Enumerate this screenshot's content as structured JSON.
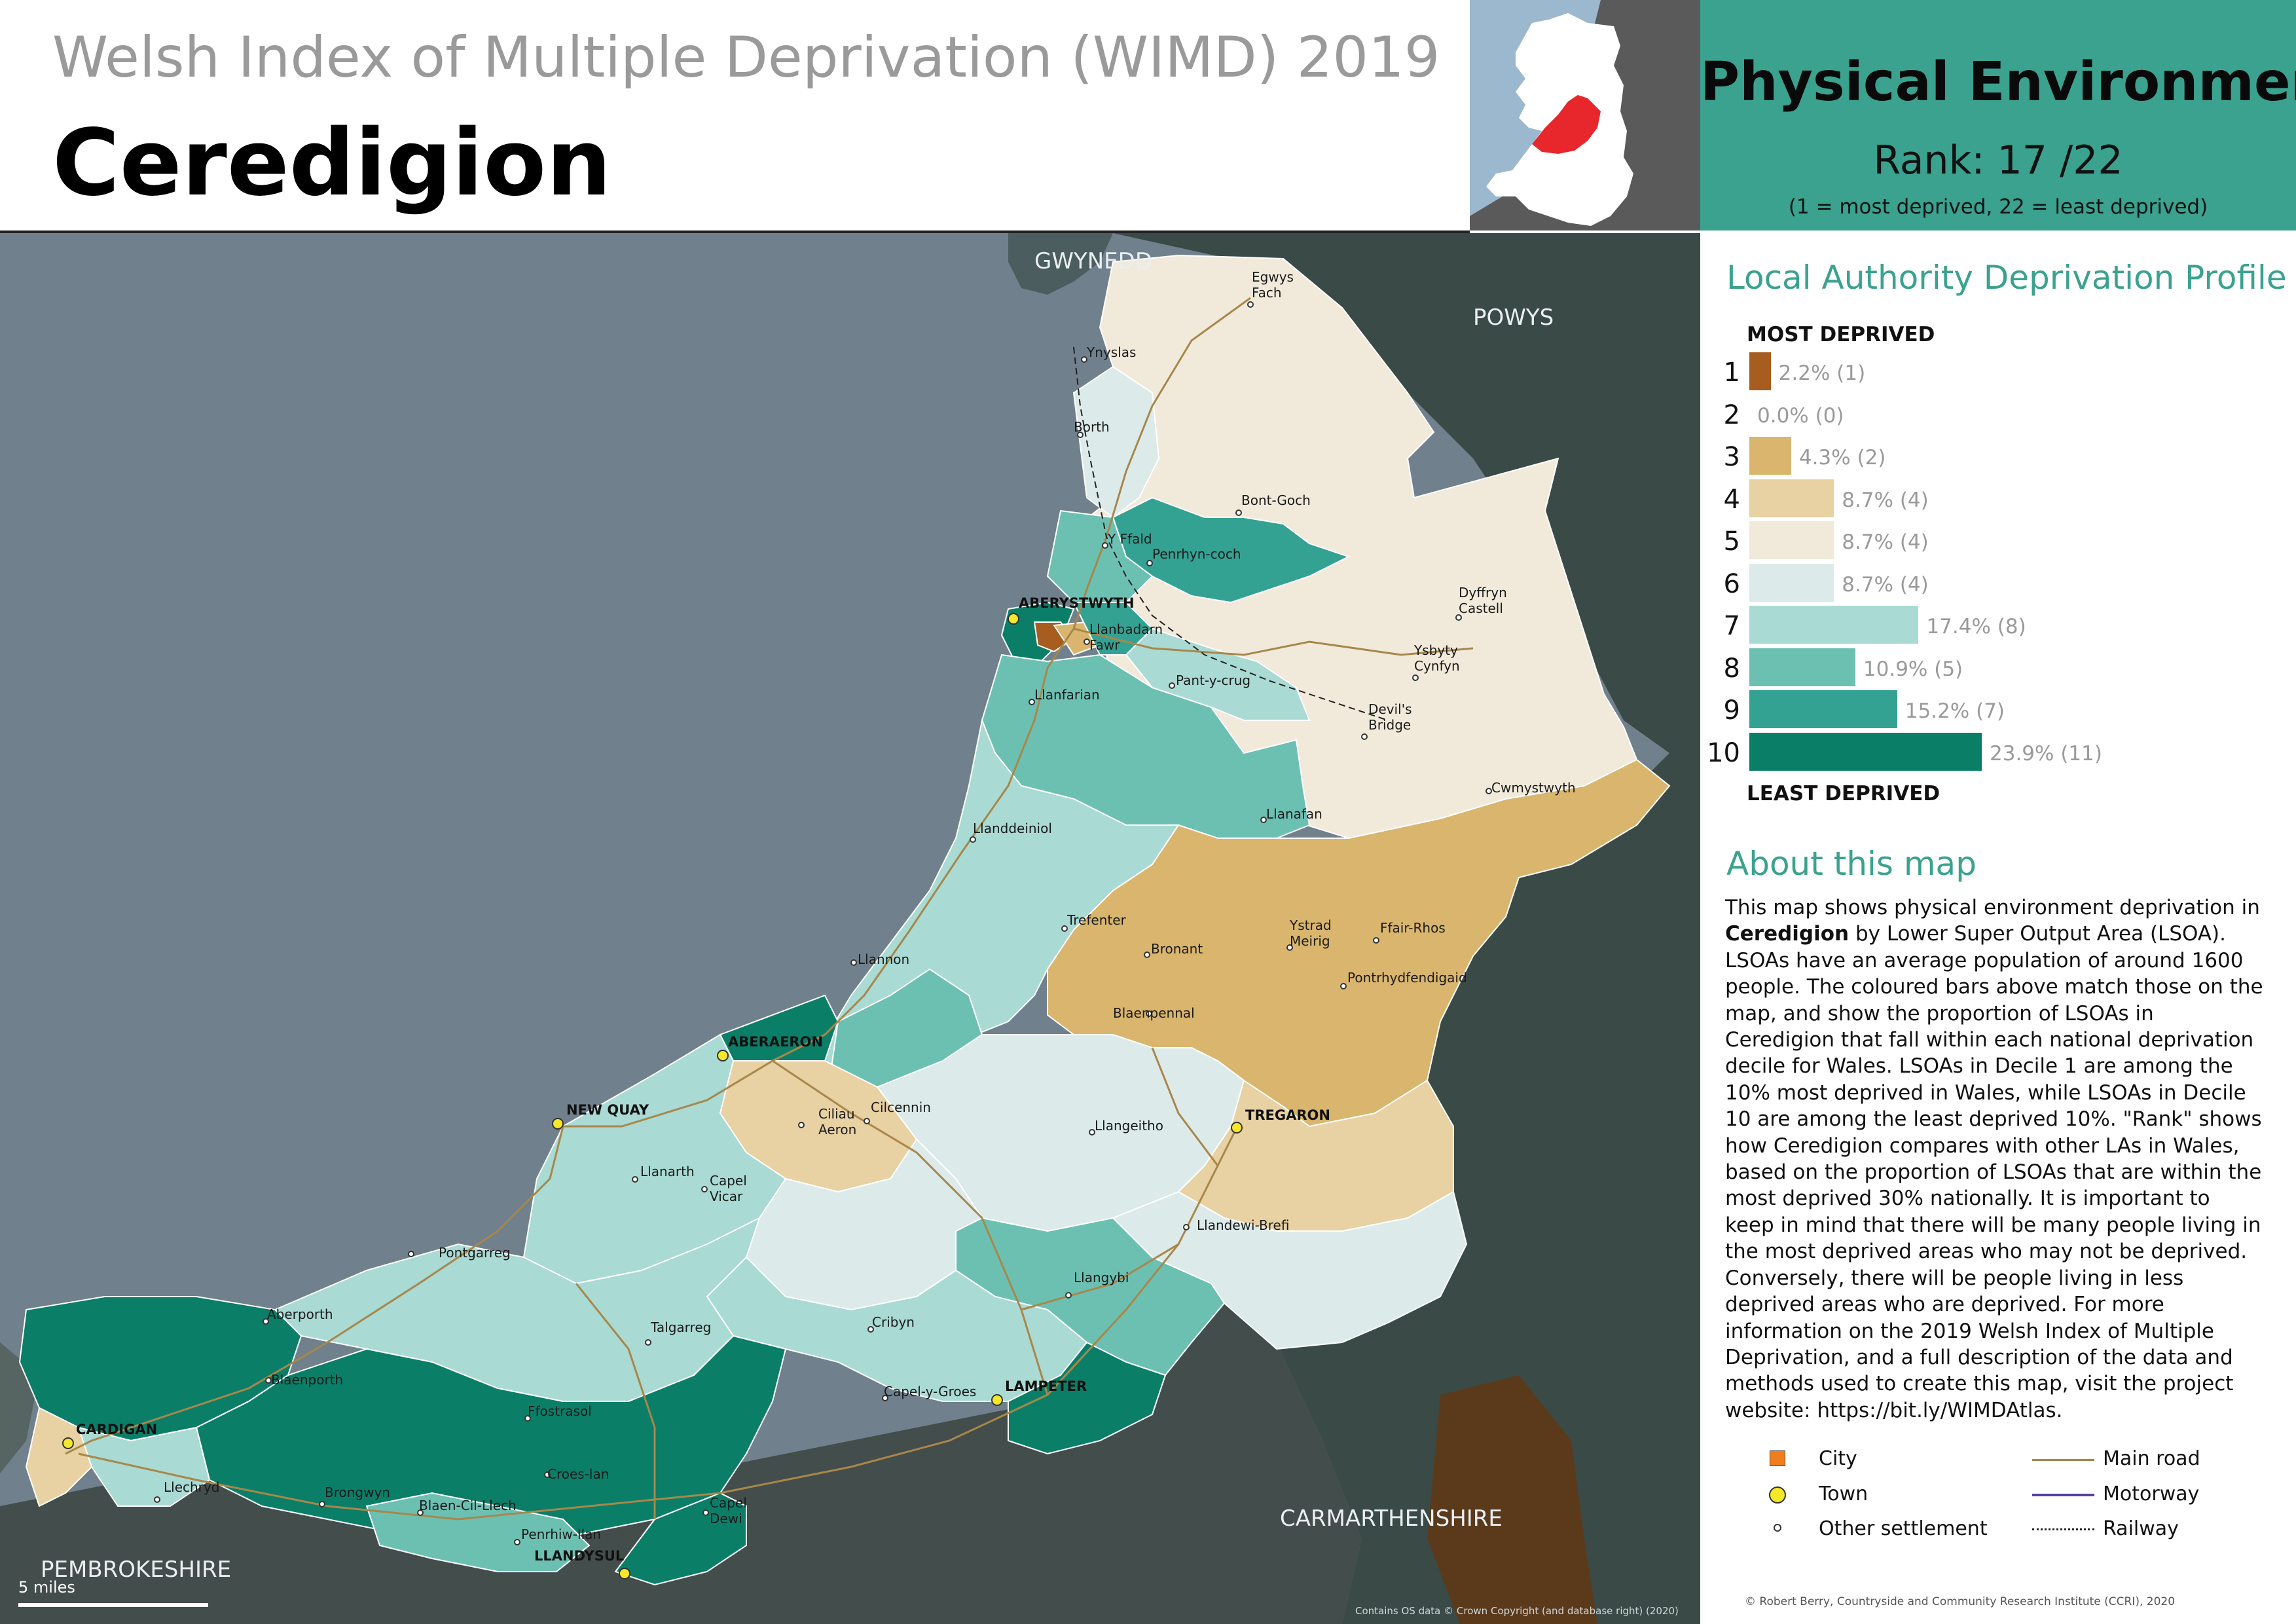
{
  "header": {
    "supertitle": "Welsh Index of Multiple Deprivation (WIMD) 2019",
    "title": "Ceredigion"
  },
  "theme": {
    "title": "Physical Environment",
    "rank": "Rank: 17 /22",
    "rank_note": "(1 =   most deprived, 22 = least deprived)"
  },
  "profile": {
    "heading": "Local Authority Deprivation Profile",
    "most_label": "MOST DEPRIVED",
    "least_label": "LEAST DEPRIVED",
    "deciles": [
      {
        "decile": "1",
        "percent": 2.2,
        "label": "2.2% (1)",
        "color": "#a65d1f"
      },
      {
        "decile": "2",
        "percent": 0.0,
        "label": "0.0% (0)",
        "color": "#c98a3c"
      },
      {
        "decile": "3",
        "percent": 4.3,
        "label": "4.3% (2)",
        "color": "#d9b56e"
      },
      {
        "decile": "4",
        "percent": 8.7,
        "label": "8.7% (4)",
        "color": "#e8d1a2"
      },
      {
        "decile": "5",
        "percent": 8.7,
        "label": "8.7% (4)",
        "color": "#f1eadb"
      },
      {
        "decile": "6",
        "percent": 8.7,
        "label": "8.7% (4)",
        "color": "#dcebea"
      },
      {
        "decile": "7",
        "percent": 17.4,
        "label": "17.4% (8)",
        "color": "#a9dad3"
      },
      {
        "decile": "8",
        "percent": 10.9,
        "label": "10.9% (5)",
        "color": "#6cc0b2"
      },
      {
        "decile": "9",
        "percent": 15.2,
        "label": "15.2% (7)",
        "color": "#34a292"
      },
      {
        "decile": "10",
        "percent": 23.9,
        "label": "23.9% (11)",
        "color": "#0b7e68"
      }
    ]
  },
  "about": {
    "heading": "About this map",
    "text_before": "This map shows physical environment deprivation in ",
    "text_bold": "Ceredigion",
    "text_after": " by Lower Super Output Area (LSOA). LSOAs have an average population of around 1600 people. The coloured bars above match those on the map, and show the proportion of LSOAs in Ceredigion that fall within each national deprivation decile for Wales. LSOAs in Decile 1 are among the 10% most deprived in Wales, while LSOAs in Decile 10 are among the least deprived 10%. \"Rank\" shows how Ceredigion compares with other LAs in Wales, based on the proportion of LSOAs that are within the most deprived 30% nationally. It is important to keep in mind that there will be many people living in the most deprived areas who may not be deprived. Conversely, there will be people living in less deprived areas who are deprived. For more information on the 2019 Welsh Index of Multiple Deprivation, and a full description of the data and methods used to create this map, visit the project website: https://bit.ly/WIMDAtlas."
  },
  "legend": {
    "city": "City",
    "town": "Town",
    "settlement": "Other settlement",
    "main_road": "Main road",
    "motorway": "Motorway",
    "railway": "Railway",
    "colors": {
      "city": "#f07d1e",
      "town": "#f5e829",
      "main_road": "#a8874a",
      "motorway": "#5a3e9e",
      "railway": "#222222"
    }
  },
  "map": {
    "regions": {
      "gwynedd": "GWYNEDD",
      "powys": "POWYS",
      "carmarthenshire": "CARMARTHENSHIRE",
      "pembrokeshire": "PEMBROKESHIRE"
    },
    "towns": {
      "aberystwyth": "ABERYSTWYTH",
      "aberaeron": "ABERAERON",
      "new_quay": "NEW QUAY",
      "tregaron": "TREGARON",
      "lampeter": "LAMPETER",
      "cardigan": "CARDIGAN",
      "llandysul": "LLANDYSUL"
    },
    "settlements": {
      "egwys_fach_1": "Egwys",
      "egwys_fach_2": "Fach",
      "ynyslas": "Ynyslas",
      "borth": "Borth",
      "bont_goch": "Bont-Goch",
      "y_ffald": "Y Ffald",
      "penrhyn_coch": "Penrhyn-coch",
      "dyffryn_castell_1": "Dyffryn",
      "dyffryn_castell_2": "Castell",
      "llanbadarn_1": "Llanbadarn",
      "llanbadarn_2": "Fawr",
      "ysbyty_cynfyn_1": "Ysbyty",
      "ysbyty_cynfyn_2": "Cynfyn",
      "pant_y_crug": "Pant-y-crug",
      "devils_bridge_1": "Devil's",
      "devils_bridge_2": "Bridge",
      "llanfarian": "Llanfarian",
      "cwmystwyth": "Cwmystwyth",
      "llanafan": "Llanafan",
      "llanddeiniol": "Llanddeiniol",
      "trefenter": "Trefenter",
      "ystrad_meirig_1": "Ystrad",
      "ystrad_meirig_2": "Meirig",
      "ffair_rhos": "Ffair-Rhos",
      "bronant": "Bronant",
      "pontrhydfendigaid": "Pontrhydfendigaid",
      "llannon": "Llannon",
      "blaenpennal": "Blaenpennal",
      "cilcennin": "Cilcennin",
      "ciliau_aeron_1": "Ciliau",
      "ciliau_aeron_2": "Aeron",
      "llangeitho": "Llangeitho",
      "llanarth": "Llanarth",
      "capel_vicar_1": "Capel",
      "capel_vicar_2": "Vicar",
      "llandewi_brefi": "Llandewi-Brefi",
      "pontgarreg": "Pontgarreg",
      "llangybi": "Llangybi",
      "aberporth": "Aberporth",
      "talgarreg": "Talgarreg",
      "cribyn": "Cribyn",
      "blaenporth": "Blaenporth",
      "capel_y_groes": "Capel-y-Groes",
      "ffostrasol": "Ffostrasol",
      "croes_lan": "Croes-lan",
      "llechryd": "Llechryd",
      "brongwyn": "Brongwyn",
      "blaen_cil_llech": "Blaen-Cil-Llech",
      "capel_dewi_1": "Capel",
      "capel_dewi_2": "Dewi",
      "penrhiw_llan": "Penrhiw-llan"
    },
    "scale_label": "5 miles",
    "copyright": "Contains OS data © Crown Copyright (and database right) (2020)"
  },
  "credit": "© Robert Berry, Countryside and Community Research Institute (CCRI), 2020"
}
